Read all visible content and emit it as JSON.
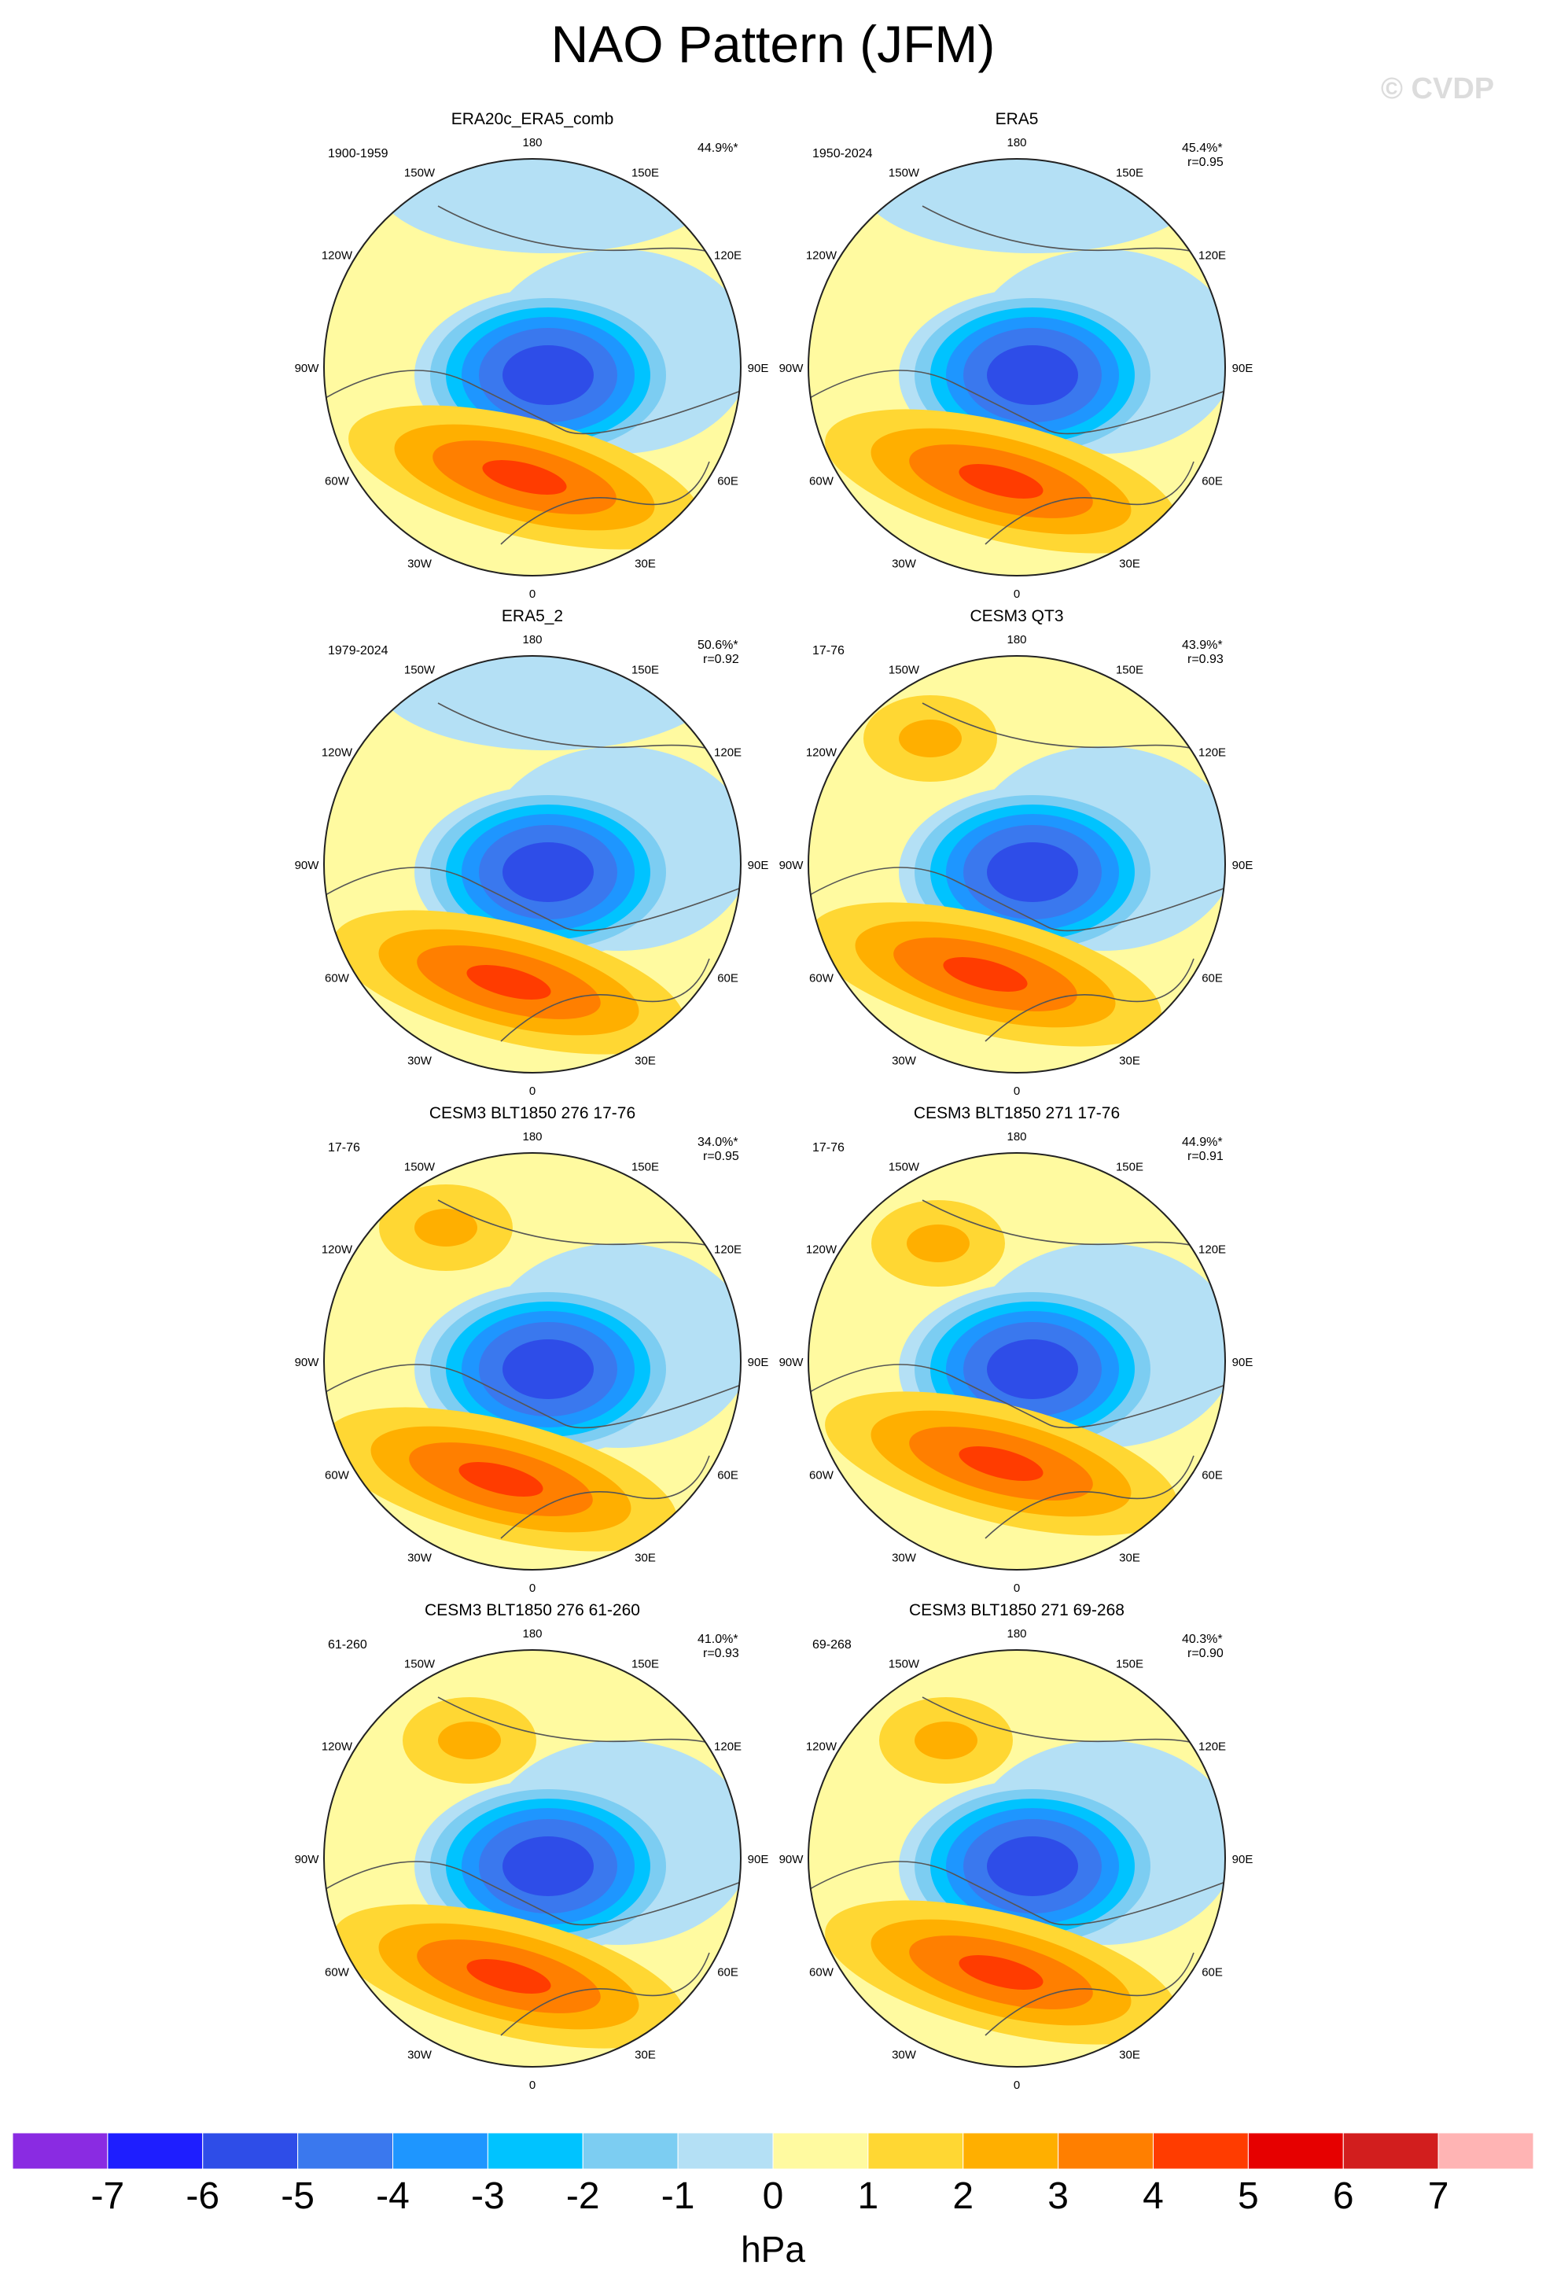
{
  "title": "NAO Pattern (JFM)",
  "watermark": "© CVDP",
  "units": "hPa",
  "colorbar": {
    "ticks": [
      "-7",
      "-6",
      "-5",
      "-4",
      "-3",
      "-2",
      "-1",
      "0",
      "1",
      "2",
      "3",
      "4",
      "5",
      "6",
      "7"
    ],
    "colors": [
      "#8a2be2",
      "#1e1eff",
      "#2e4de8",
      "#3a78ee",
      "#1e96ff",
      "#00c3ff",
      "#7ccdf2",
      "#b4e0f5",
      "#fffaa0",
      "#ffd733",
      "#ffaf00",
      "#ff7f00",
      "#ff3c00",
      "#e60000",
      "#d21e1e",
      "#ffb4b4"
    ]
  },
  "lon_labels": [
    "180",
    "150E",
    "120E",
    "90E",
    "60E",
    "30E",
    "0",
    "30W",
    "60W",
    "90W",
    "120W",
    "150W"
  ],
  "panels": [
    {
      "title": "ERA20c_ERA5_comb",
      "period": "1900-1959",
      "pct": "44.9%*",
      "r": "",
      "variant": 0
    },
    {
      "title": "ERA5",
      "period": "1950-2024",
      "pct": "45.4%*",
      "r": "r=0.95",
      "variant": 1
    },
    {
      "title": "ERA5_2",
      "period": "1979-2024",
      "pct": "50.6%*",
      "r": "r=0.92",
      "variant": 2
    },
    {
      "title": "CESM3 QT3",
      "period": "17-76",
      "pct": "43.9%*",
      "r": "r=0.93",
      "variant": 3
    },
    {
      "title": "CESM3 BLT1850 276 17-76",
      "period": "17-76",
      "pct": "34.0%*",
      "r": "r=0.95",
      "variant": 4
    },
    {
      "title": "CESM3 BLT1850 271 17-76",
      "period": "17-76",
      "pct": "44.9%*",
      "r": "r=0.91",
      "variant": 5
    },
    {
      "title": "CESM3 BLT1850 276 61-260",
      "period": "61-260",
      "pct": "41.0%*",
      "r": "r=0.93",
      "variant": 6
    },
    {
      "title": "CESM3 BLT1850 271 69-268",
      "period": "69-268",
      "pct": "40.3%*",
      "r": "r=0.90",
      "variant": 7
    }
  ]
}
